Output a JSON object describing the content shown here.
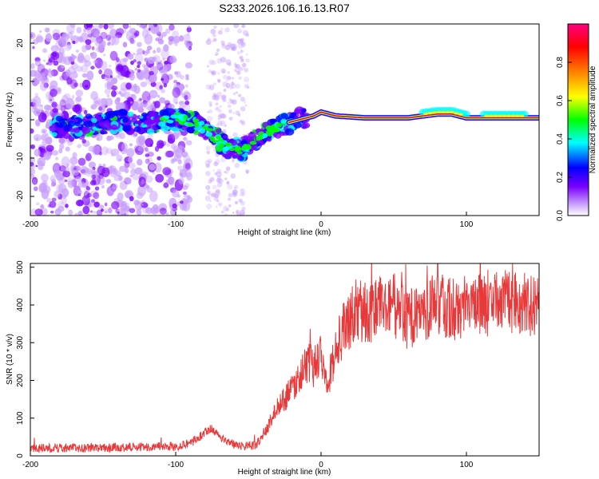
{
  "chart_data": [
    {
      "type": "heatmap",
      "title": "S233.2026.106.16.13.R07",
      "xlabel": "Height of straight line (km)",
      "ylabel": "Frequency (Hz)",
      "xlim": [
        -200,
        150
      ],
      "ylim": [
        -25,
        25
      ],
      "xticks": [
        -200,
        -100,
        0,
        100
      ],
      "yticks": [
        20,
        10,
        0,
        -10,
        -20
      ],
      "colorbar": {
        "label": "Normalized spectral amplitude",
        "range": [
          0,
          1
        ],
        "ticks": [
          "0.0",
          "0.2",
          "0.4",
          "0.6",
          "0.8"
        ],
        "colors": [
          "#ffffff",
          "#c8a0ff",
          "#7a00ff",
          "#0000ff",
          "#00ffff",
          "#00ff00",
          "#ffff00",
          "#ff8000",
          "#ff0000",
          "#ff0080"
        ]
      },
      "ridge": {
        "x": [
          -180,
          -160,
          -140,
          -120,
          -105,
          -95,
          -85,
          -75,
          -65,
          -55,
          -45,
          -35,
          -25,
          -15,
          -5,
          0,
          10,
          30,
          60,
          80,
          90,
          100,
          120,
          150
        ],
        "y": [
          -2,
          -1.5,
          -0.5,
          -1,
          0,
          0,
          -1,
          -4,
          -7,
          -8,
          -5,
          -3,
          -1,
          0,
          1,
          2,
          1,
          0.5,
          0.5,
          1.5,
          1.5,
          0.5,
          0.5,
          0.5
        ]
      }
    },
    {
      "type": "line",
      "xlabel": "Height of straight line (km)",
      "ylabel": "SNR (10 * v/v)",
      "xlim": [
        -200,
        150
      ],
      "ylim": [
        0,
        510
      ],
      "xticks": [
        -200,
        -100,
        0,
        100
      ],
      "yticks": [
        0,
        100,
        200,
        300,
        400,
        500
      ],
      "color": "#e8393a",
      "trend": {
        "x": [
          -200,
          -150,
          -100,
          -90,
          -80,
          -75,
          -70,
          -60,
          -50,
          -45,
          -40,
          -35,
          -30,
          -25,
          -20,
          -15,
          -10,
          -5,
          0,
          5,
          10,
          15,
          20,
          25,
          30,
          40,
          50,
          60,
          70,
          80,
          90,
          100,
          110,
          120,
          130,
          140,
          150
        ],
        "y": [
          20,
          22,
          25,
          35,
          60,
          70,
          50,
          30,
          25,
          30,
          50,
          90,
          130,
          150,
          180,
          210,
          240,
          250,
          270,
          200,
          280,
          330,
          360,
          390,
          380,
          390,
          400,
          360,
          380,
          400,
          390,
          400,
          400,
          410,
          410,
          405,
          410
        ]
      }
    }
  ]
}
